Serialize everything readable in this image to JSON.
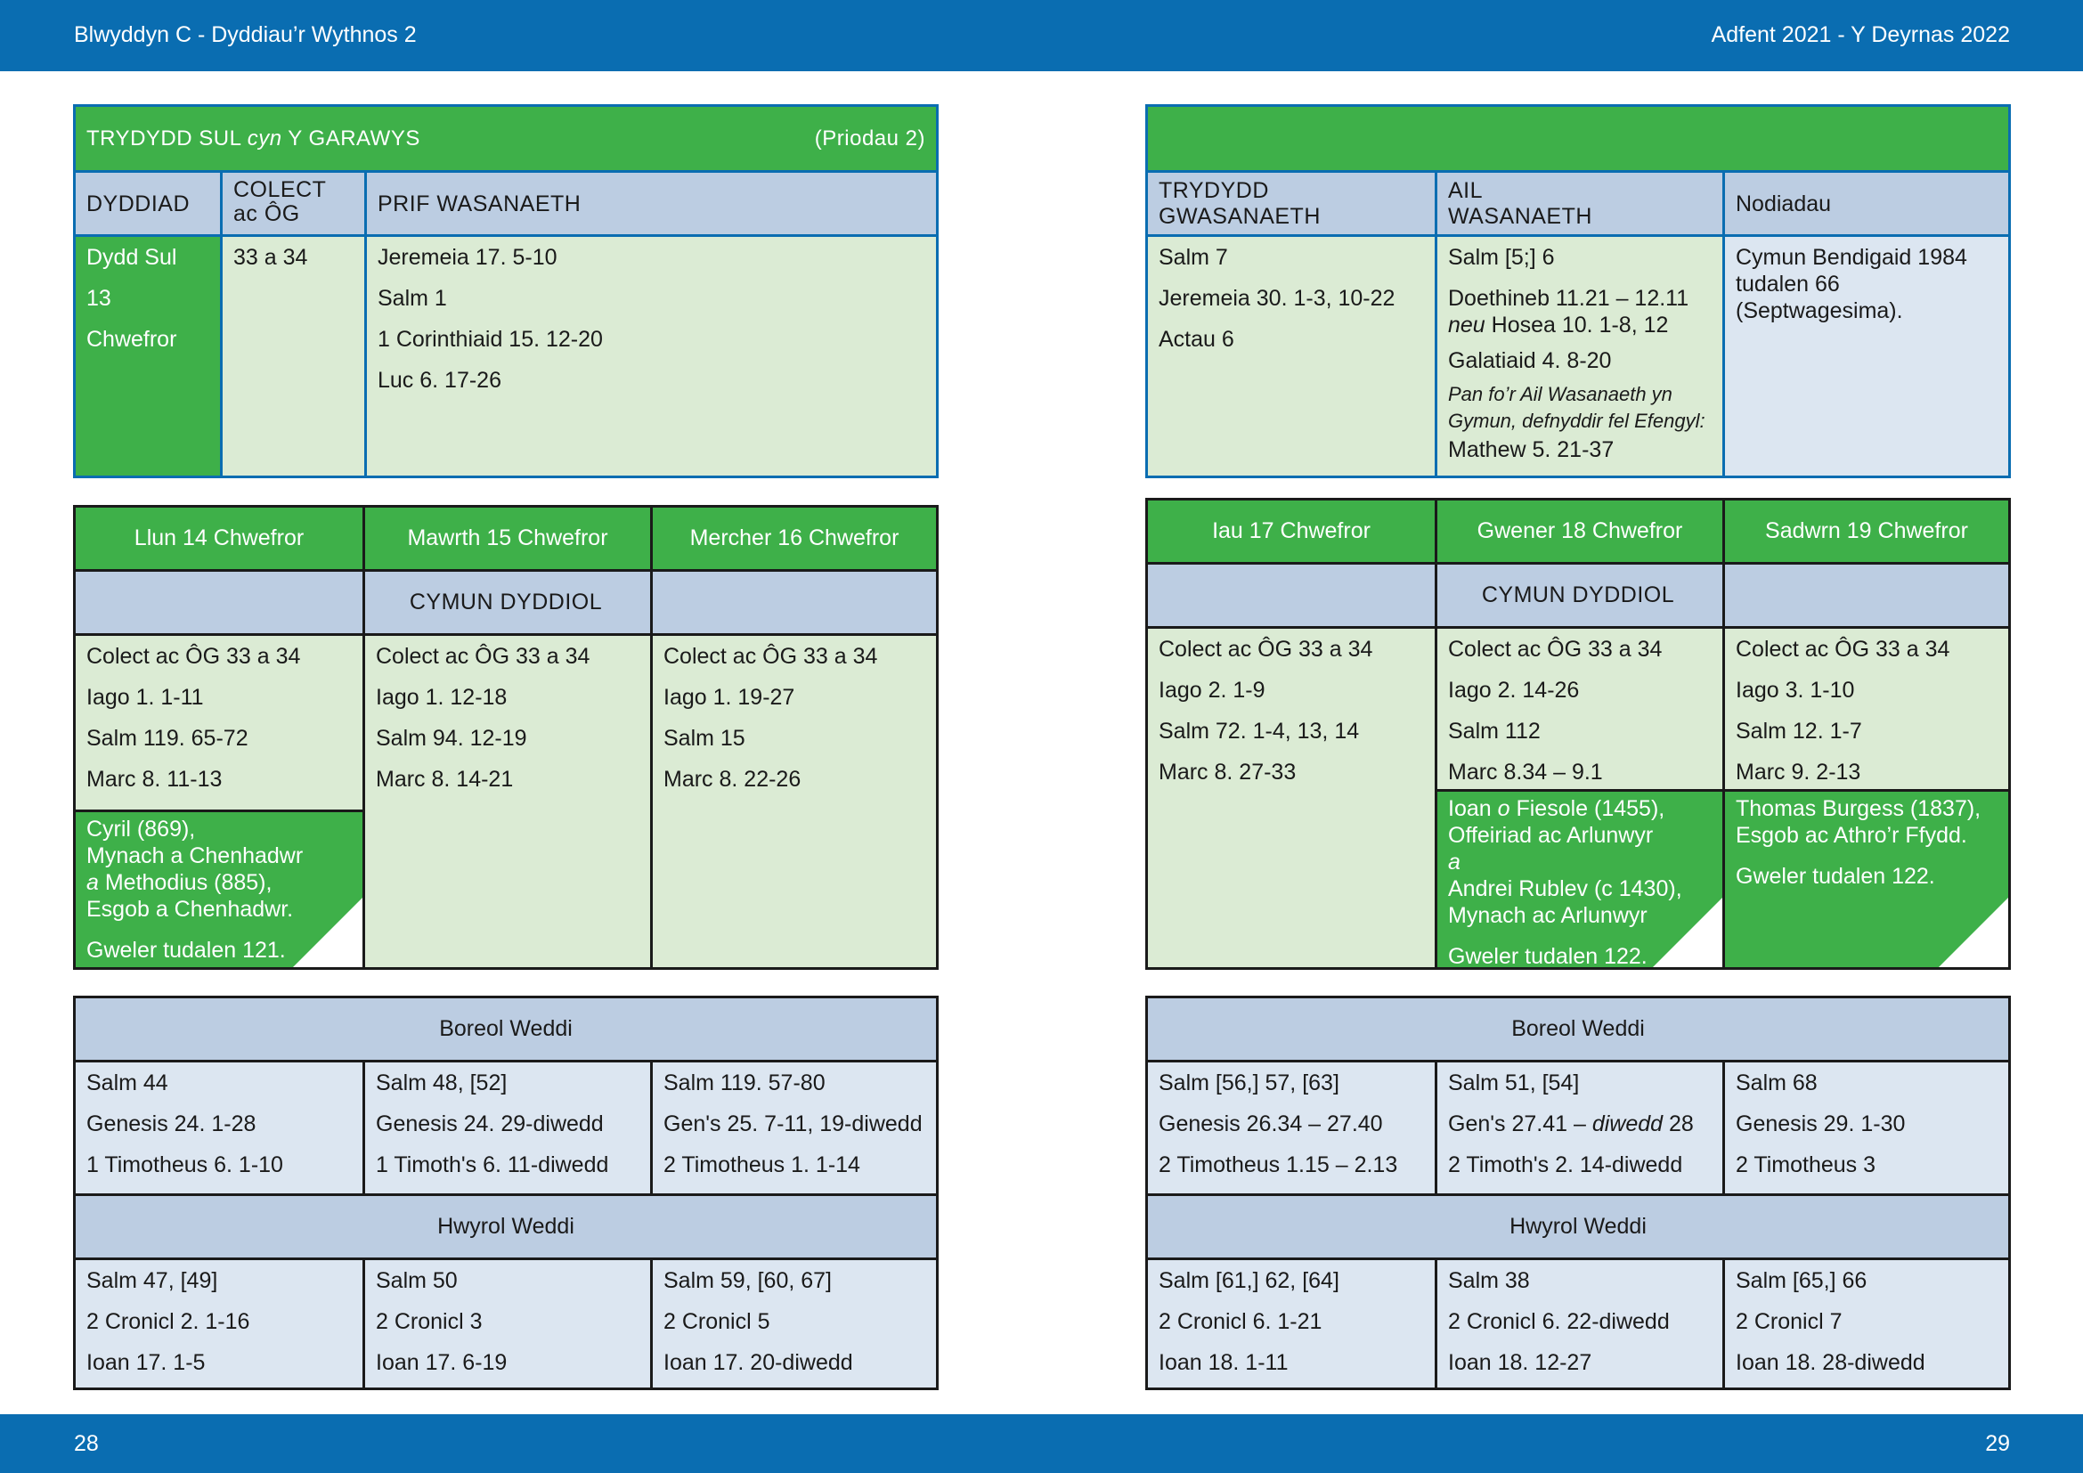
{
  "header": {
    "left": "Blwyddyn  C - Dyddiau’r Wythnos 2",
    "right": "Adfent 2021 - Y Deyrnas 2022"
  },
  "footer": {
    "left_page": "28",
    "right_page": "29"
  },
  "colors": {
    "bar_blue": "#0a6db1",
    "green": "#3eb049",
    "header_blue": "#bccde2",
    "light_green": "#dbebd4",
    "light_blue": "#dce6f1"
  },
  "sunday": {
    "title_pre": "TRYDYDD SUL ",
    "title_italic": "cyn",
    "title_post": " Y GARAWYS",
    "propers": "(Priodau 2)",
    "col_date": "DYDDIAD",
    "col_collect_1": "COLECT",
    "col_collect_2": "ac ÔG",
    "col_main": "PRIF WASANAETH",
    "date_lines": [
      "Dydd Sul",
      "13",
      "Chwefror"
    ],
    "collect": "33 a 34",
    "main_lines": [
      "Jeremeia 17. 5-10",
      "Salm 1",
      "1 Corinthiaid 15. 12-20",
      "Luc 6. 17-26"
    ],
    "col_third_1": "TRYDYDD",
    "col_third_2": "GWASANAETH",
    "col_second_1": "AIL",
    "col_second_2": "WASANAETH",
    "col_notes": "Nodiadau",
    "third_lines": [
      "Salm 7",
      "Jeremeia 30. 1-3, 10-22",
      "Actau 6"
    ],
    "second_psalm": "Salm [5;] 6",
    "second_ot_1": "Doethineb 11.21 – 12.11",
    "second_ot_neu": "neu",
    "second_ot_2": " Hosea 10. 1-8, 12",
    "second_nt": "Galatiaid 4. 8-20",
    "second_note_1": "Pan fo’r Ail Wasanaeth yn",
    "second_note_2": "Gymun, defnyddir fel Efengyl:",
    "second_gospel": "Mathew 5. 21-37",
    "notes_lines": [
      "Cymun Bendigaid 1984",
      "tudalen 66",
      "(Septwagesima)."
    ]
  },
  "week_left": {
    "days": [
      "Llun 14 Chwefror",
      "Mawrth 15 Chwefror",
      "Mercher 16 Chwefror"
    ],
    "communion_title": "CYMUN DYDDIOL",
    "readings": [
      [
        "Colect ac ÔG 33 a 34",
        "Iago 1. 1-11",
        "Salm 119. 65-72",
        "Marc 8. 11-13"
      ],
      [
        "Colect ac ÔG 33 a 34",
        "Iago 1. 12-18",
        "Salm 94. 12-19",
        "Marc 8. 14-21"
      ],
      [
        "Colect ac ÔG 33 a 34",
        "Iago 1. 19-27",
        "Salm 15",
        "Marc 8. 22-26"
      ]
    ],
    "commemoration": {
      "lines": [
        "Cyril (869),",
        "Mynach a Chenhadwr"
      ],
      "italic": "a",
      "after_italic": " Methodius (885),",
      "line4": "Esgob a Chenhadwr.",
      "see": "Gweler tudalen 121."
    },
    "morning_title": "Boreol Weddi",
    "morning": [
      [
        "Salm 44",
        "Genesis 24. 1-28",
        "1 Timotheus 6. 1-10"
      ],
      [
        "Salm 48, [52]",
        "Genesis 24. 29-diwedd",
        "1 Timoth's 6. 11-diwedd"
      ],
      [
        "Salm 119. 57-80",
        "Gen's 25. 7-11, 19-diwedd",
        "2 Timotheus 1. 1-14"
      ]
    ],
    "evening_title": "Hwyrol Weddi",
    "evening": [
      [
        "Salm 47, [49]",
        "2 Cronicl 2. 1-16",
        "Ioan 17. 1-5"
      ],
      [
        "Salm 50",
        "2 Cronicl 3",
        "Ioan 17. 6-19"
      ],
      [
        "Salm 59, [60, 67]",
        "2 Cronicl 5",
        "Ioan 17. 20-diwedd"
      ]
    ]
  },
  "week_right": {
    "days": [
      "Iau 17 Chwefror",
      "Gwener 18 Chwefror",
      "Sadwrn 19 Chwefror"
    ],
    "communion_title": "CYMUN DYDDIOL",
    "readings": [
      [
        "Colect ac ÔG 33 a 34",
        "Iago 2. 1-9",
        "Salm 72. 1-4, 13, 14",
        "Marc 8. 27-33"
      ],
      [
        "Colect ac ÔG 33 a 34",
        "Iago 2. 14-26",
        "Salm 112",
        "Marc 8.34 – 9.1"
      ],
      [
        "Colect ac ÔG 33 a 34",
        "Iago 3. 1-10",
        "Salm 12. 1-7",
        "Marc 9. 2-13"
      ]
    ],
    "commemoration_fri": {
      "l1_pre": "Ioan ",
      "l1_italic": "o",
      "l1_post": " Fiesole (1455),",
      "l2": "Offeiriad ac Arlunwyr",
      "l3": "a",
      "l4": "Andrei Rublev (c 1430),",
      "l5": "Mynach ac Arlunwyr",
      "see": "Gweler tudalen 122."
    },
    "commemoration_sat": {
      "lines": [
        "Thomas Burgess (1837),",
        "Esgob ac Athro’r Ffydd."
      ],
      "see": "Gweler tudalen 122."
    },
    "morning_title": "Boreol Weddi",
    "morning": [
      [
        "Salm [56,] 57, [63]",
        "Genesis 26.34 – 27.40",
        "2 Timotheus 1.15 – 2.13"
      ],
      [
        "Salm 51, [54]",
        "Gen's 27.41 – ",
        "2 Timoth's 2. 14-diwedd"
      ],
      [
        "Salm 68",
        "Genesis 29. 1-30",
        "2 Timotheus 3"
      ]
    ],
    "morning_italic_diwedd": "diwedd",
    "morning_after_italic": " 28",
    "evening_title": "Hwyrol Weddi",
    "evening": [
      [
        "Salm [61,] 62, [64]",
        "2 Cronicl 6. 1-21",
        "Ioan 18. 1-11"
      ],
      [
        "Salm 38",
        "2 Cronicl 6. 22-diwedd",
        "Ioan 18. 12-27"
      ],
      [
        "Salm [65,] 66",
        "2 Cronicl 7",
        "Ioan 18. 28-diwedd"
      ]
    ]
  }
}
